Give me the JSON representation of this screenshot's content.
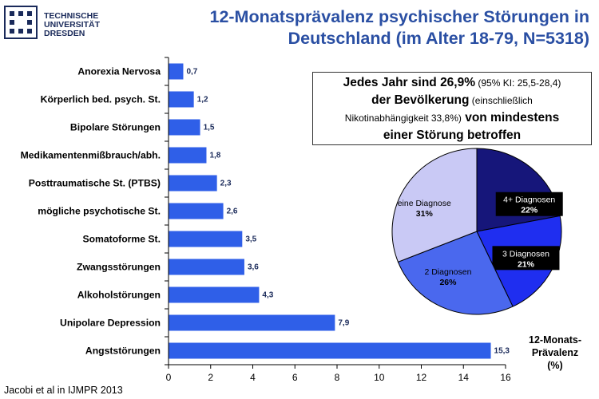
{
  "logo": {
    "line1": "TECHNISCHE",
    "line2": "UNIVERSITÄT",
    "line3": "DRESDEN"
  },
  "title": {
    "line1": "12-Monatsprävalenz psychischer Störungen in",
    "line2": "Deutschland (im Alter 18-79, N=5318)"
  },
  "callout": {
    "p1": "Jedes Jahr sind 26,9%",
    "p2": " (95% KI: 25,5-28,4)",
    "p3": "der Bevölkerung",
    "p4": " (einschließlich",
    "p5": "Nikotinabhängigkeit  33,8%)",
    "p6": " von mindestens",
    "p7": "einer Störung betroffen"
  },
  "axis_title": {
    "line1": "12-Monats-",
    "line2": "Prävalenz",
    "line3": "(%)"
  },
  "source": "Jacobi et al in IJMPR 2013",
  "colors": {
    "bar": "#2f5fe8",
    "title": "#2a4fa3"
  },
  "chart_data": [
    {
      "type": "bar",
      "orientation": "horizontal",
      "categories": [
        "Anorexia Nervosa",
        "Körperlich bed. psych. St.",
        "Bipolare Störungen",
        "Medikamentenmißbrauch/abh.",
        "Posttraumatische St. (PTBS)",
        "mögliche psychotische St.",
        "Somatoforme St.",
        "Zwangsstörungen",
        "Alkoholstörungen",
        "Unipolare Depression",
        "Angststörungen"
      ],
      "values": [
        0.7,
        1.2,
        1.5,
        1.8,
        2.3,
        2.6,
        3.5,
        3.6,
        4.3,
        7.9,
        15.3
      ],
      "value_labels": [
        "0,7",
        "1,2",
        "1,5",
        "1,8",
        "2,3",
        "2,6",
        "3,5",
        "3,6",
        "4,3",
        "7,9",
        "15,3"
      ],
      "xlim": [
        0,
        16
      ],
      "xticks": [
        0,
        2,
        4,
        6,
        8,
        10,
        12,
        14,
        16
      ],
      "xtick_labels": [
        "0",
        "2",
        "4",
        "6",
        "8",
        "10",
        "12",
        "14",
        "16"
      ],
      "grid": false
    },
    {
      "type": "pie",
      "slices": [
        {
          "label": "4+ Diagnosen",
          "value": 22,
          "value_label": "22%",
          "color": "#16167a"
        },
        {
          "label": "3 Diagnosen",
          "value": 21,
          "value_label": "21%",
          "color": "#1f2ef0"
        },
        {
          "label": "2 Diagnosen",
          "value": 26,
          "value_label": "26%",
          "color": "#4a68ee"
        },
        {
          "label": "eine Diagnose",
          "value": 31,
          "value_label": "31%",
          "color": "#c9c9f5"
        }
      ]
    }
  ]
}
